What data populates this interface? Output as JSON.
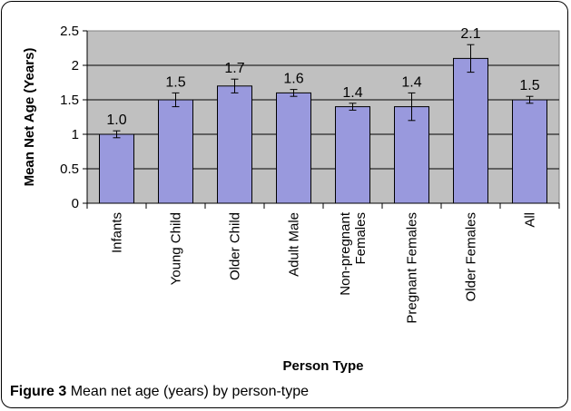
{
  "chart_data": {
    "type": "bar",
    "xlabel": "Person Type",
    "ylabel": "Mean Net Age (Years)",
    "ylim": [
      0,
      2.5
    ],
    "yticks": [
      "0",
      "0.5",
      "1",
      "1.5",
      "2",
      "2.5"
    ],
    "ytick_values": [
      0,
      0.5,
      1,
      1.5,
      2,
      2.5
    ],
    "categories": [
      [
        "Infants"
      ],
      [
        "Young Child"
      ],
      [
        "Older Child"
      ],
      [
        "Adult Male"
      ],
      [
        "Non-pregnant",
        "Females"
      ],
      [
        "Pregnant Females"
      ],
      [
        "Older Females"
      ],
      [
        "All"
      ]
    ],
    "values": [
      1.0,
      1.5,
      1.7,
      1.6,
      1.4,
      1.4,
      2.1,
      1.5
    ],
    "value_labels": [
      "1.0",
      "1.5",
      "1.7",
      "1.6",
      "1.4",
      "1.4",
      "2.1",
      "1.5"
    ],
    "errors": [
      0.05,
      0.1,
      0.1,
      0.05,
      0.05,
      0.2,
      0.2,
      0.05
    ],
    "grid": true,
    "bar_color": "#9999dd",
    "plot_bg": "#c0c0c0"
  },
  "caption": {
    "label": "Figure 3",
    "text": "Mean net age (years) by person-type"
  }
}
